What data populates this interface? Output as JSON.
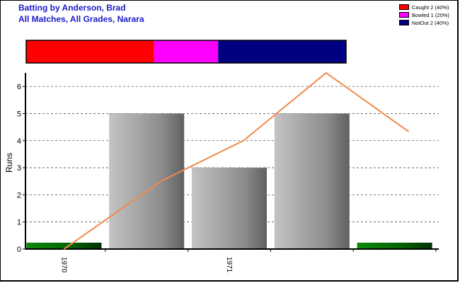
{
  "titles": {
    "line1": "Batting by Anderson, Brad",
    "line2": "All Matches, All Grades, Narara"
  },
  "legend": [
    {
      "label": "Caught 2 (40%)",
      "color": "#ff0000"
    },
    {
      "label": "Bowled 1 (20%)",
      "color": "#ff00ff"
    },
    {
      "label": "NotOut 2 (40%)",
      "color": "#000080"
    }
  ],
  "chart_data": {
    "type": "bar",
    "ylabel": "Runs",
    "ylim": [
      0,
      6.5
    ],
    "yticks": [
      0,
      1,
      2,
      3,
      4,
      5,
      6
    ],
    "grid": true,
    "categories": [
      "1970",
      "",
      "1971",
      "",
      ""
    ],
    "x_tick_labels": [
      "1970",
      "1971"
    ],
    "values": [
      0,
      5,
      3,
      5,
      0
    ],
    "bar_colors": [
      "green",
      "gray",
      "gray",
      "gray",
      "green"
    ],
    "line_series": {
      "color": "#f08a4b",
      "values": [
        0,
        2.5,
        4,
        6.5,
        4.33
      ]
    },
    "dismissal_bar": [
      {
        "label": "Caught",
        "count": 2,
        "share": 0.4,
        "color": "#ff0000"
      },
      {
        "label": "Bowled",
        "count": 1,
        "share": 0.2,
        "color": "#ff00ff"
      },
      {
        "label": "NotOut",
        "count": 2,
        "share": 0.4,
        "color": "#000080"
      }
    ]
  }
}
